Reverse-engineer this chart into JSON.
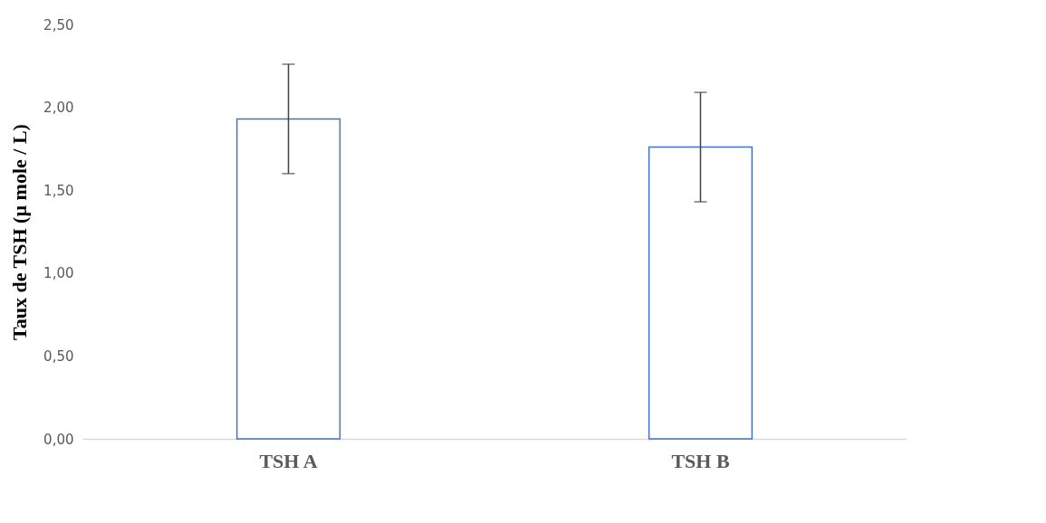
{
  "chart_data": {
    "type": "bar",
    "ylabel": "Taux de TSH (µ mole / L)",
    "categories": [
      "TSH A",
      "TSH B"
    ],
    "values": [
      1.93,
      1.76
    ],
    "errors": [
      0.33,
      0.33
    ],
    "color": "#4472c4",
    "ylim": [
      0,
      2.5
    ],
    "yticks": [
      {
        "value": 0,
        "label": "0,00"
      },
      {
        "value": 0.5,
        "label": "0,50"
      },
      {
        "value": 1,
        "label": "1,00"
      },
      {
        "value": 1.5,
        "label": "1,50"
      },
      {
        "value": 2,
        "label": "2,00"
      },
      {
        "value": 2.5,
        "label": "2,50"
      }
    ],
    "grid": false
  }
}
